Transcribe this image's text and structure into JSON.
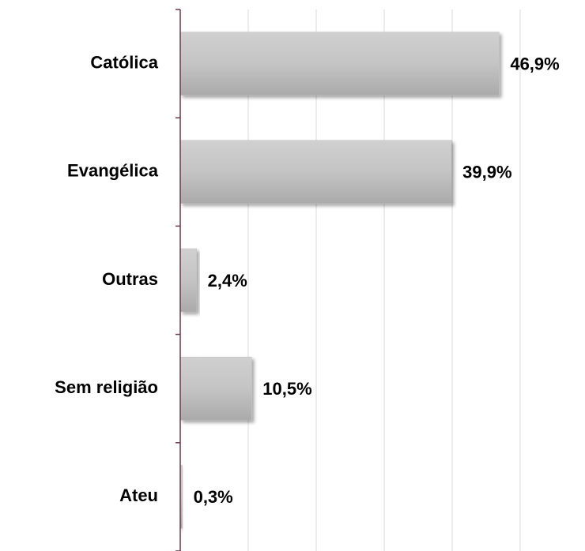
{
  "chart_data": {
    "type": "bar",
    "orientation": "horizontal",
    "categories": [
      "Católica",
      "Evangélica",
      "Outras",
      "Sem religião",
      "Ateu"
    ],
    "values": [
      46.9,
      39.9,
      2.4,
      10.5,
      0.3
    ],
    "value_labels": [
      "46,9%",
      "39,9%",
      "2,4%",
      "10,5%",
      "0,3%"
    ],
    "color": "#bfbfbf",
    "xlim": [
      0,
      50
    ],
    "xticks": [
      0,
      10,
      20,
      30,
      40,
      50
    ],
    "grid": true
  }
}
